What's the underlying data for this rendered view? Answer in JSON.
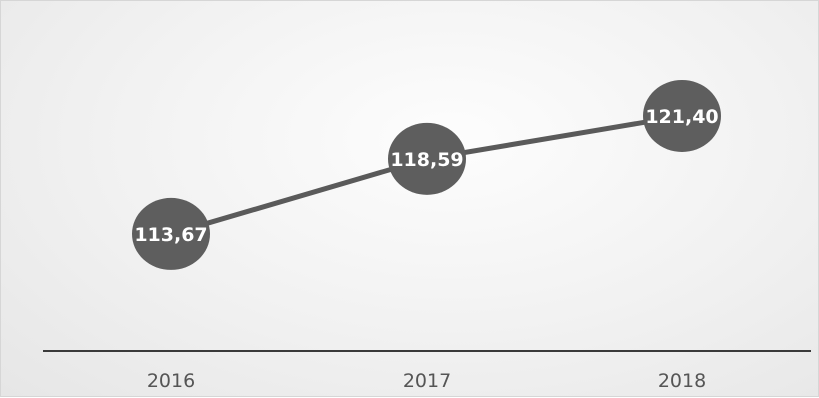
{
  "chart_data": {
    "type": "line",
    "title": "",
    "xlabel": "",
    "ylabel": "",
    "categories": [
      "2016",
      "2017",
      "2018"
    ],
    "series": [
      {
        "values": [
          113.67,
          118.59,
          121.4
        ],
        "labels": [
          "113,67",
          "118,59",
          "121,40"
        ]
      }
    ],
    "ylim": [
      106,
      125
    ],
    "grid": false,
    "legend": "none",
    "colors": {
      "line": "#5a5a5a",
      "marker": "#5e5e5e",
      "axis": "#3a3a3a",
      "tick_text": "#555555",
      "label_text": "#ffffff"
    }
  }
}
